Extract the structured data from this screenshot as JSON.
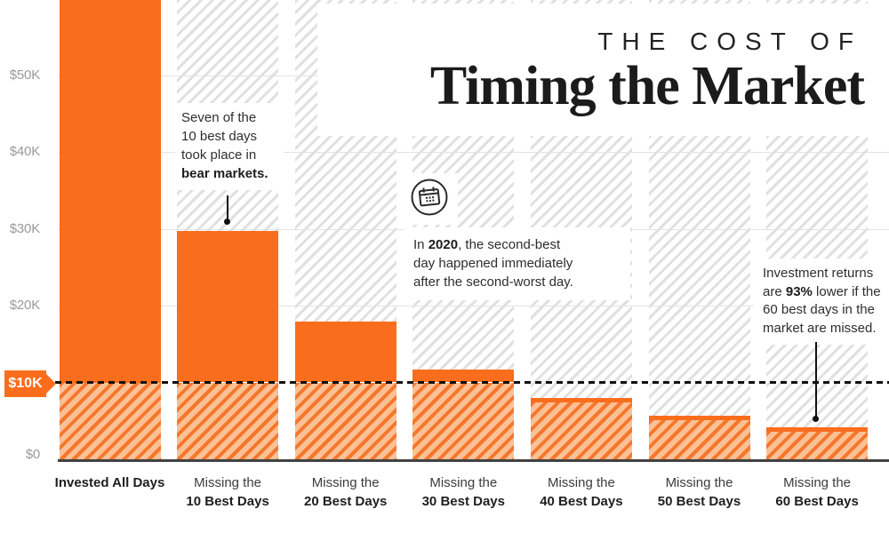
{
  "title": {
    "kicker": "THE COST OF",
    "main": "Timing the Market"
  },
  "colors": {
    "orange": "#fa6d1c",
    "orange_hatch_stripe": "#f5772d",
    "orange_hatch_bg": "#fbc195",
    "gray_hatch_stripe": "#e0e0e0",
    "ink": "#1b1b1b",
    "body_text": "#2e2e2e",
    "axis_label_gray": "#9a9a9a",
    "baseline_gray": "#424242",
    "gridline_gray": "#e3e3e3",
    "dashed_line_black": "#101010",
    "white": "#ffffff"
  },
  "chart_data": {
    "type": "bar",
    "title": "THE COST OF Timing the Market",
    "categories": [
      "Invested All Days",
      "Missing the 10 Best Days",
      "Missing the 20 Best Days",
      "Missing the 30 Best Days",
      "Missing the 40 Best Days",
      "Missing the 50 Best Days",
      "Missing the 60 Best Days"
    ],
    "values": [
      65000,
      29700,
      17900,
      11700,
      8000,
      5700,
      4200
    ],
    "first_bar_clipped_at_top": true,
    "xlabel": "",
    "ylabel": "",
    "ylim": [
      0,
      59800
    ],
    "grid": "horizontal",
    "legend": "none",
    "y_ticks": [
      {
        "label": "$50K",
        "value": 50000
      },
      {
        "label": "$40K",
        "value": 40000
      },
      {
        "label": "$30K",
        "value": 30000
      },
      {
        "label": "$20K",
        "value": 20000
      },
      {
        "label": "$0",
        "value": 0
      }
    ],
    "threshold": {
      "label": "$10K",
      "value": 10000,
      "style": "dashed-black"
    }
  },
  "x_labels": [
    {
      "line1": "Invested All Days",
      "line2": "",
      "line1_bold": true
    },
    {
      "line1": "Missing the",
      "line2": "10 Best Days",
      "line1_bold": false
    },
    {
      "line1": "Missing the",
      "line2": "20 Best Days",
      "line1_bold": false
    },
    {
      "line1": "Missing the",
      "line2": "30 Best Days",
      "line1_bold": false
    },
    {
      "line1": "Missing the",
      "line2": "40 Best Days",
      "line1_bold": false
    },
    {
      "line1": "Missing the",
      "line2": "50 Best Days",
      "line1_bold": false
    },
    {
      "line1": "Missing the",
      "line2": "60 Best Days",
      "line1_bold": false
    }
  ],
  "annotations": [
    {
      "id": "bear-markets-note",
      "segments": [
        {
          "text": "Seven of the\n10 best days\ntook place in\n",
          "bold": false
        },
        {
          "text": "bear markets.",
          "bold": true
        }
      ]
    },
    {
      "id": "calendar-note",
      "icon": "calendar-icon",
      "segments": [
        {
          "text": "In ",
          "bold": false
        },
        {
          "text": "2020",
          "bold": true
        },
        {
          "text": ", the second-best\nday happened immediately\nafter the second-worst day.",
          "bold": false
        }
      ]
    },
    {
      "id": "returns-note",
      "segments": [
        {
          "text": "Investment returns\nare ",
          "bold": false
        },
        {
          "text": "93%",
          "bold": true
        },
        {
          "text": " lower if the\n60 best days in the\nmarket are missed.",
          "bold": false
        }
      ]
    }
  ]
}
